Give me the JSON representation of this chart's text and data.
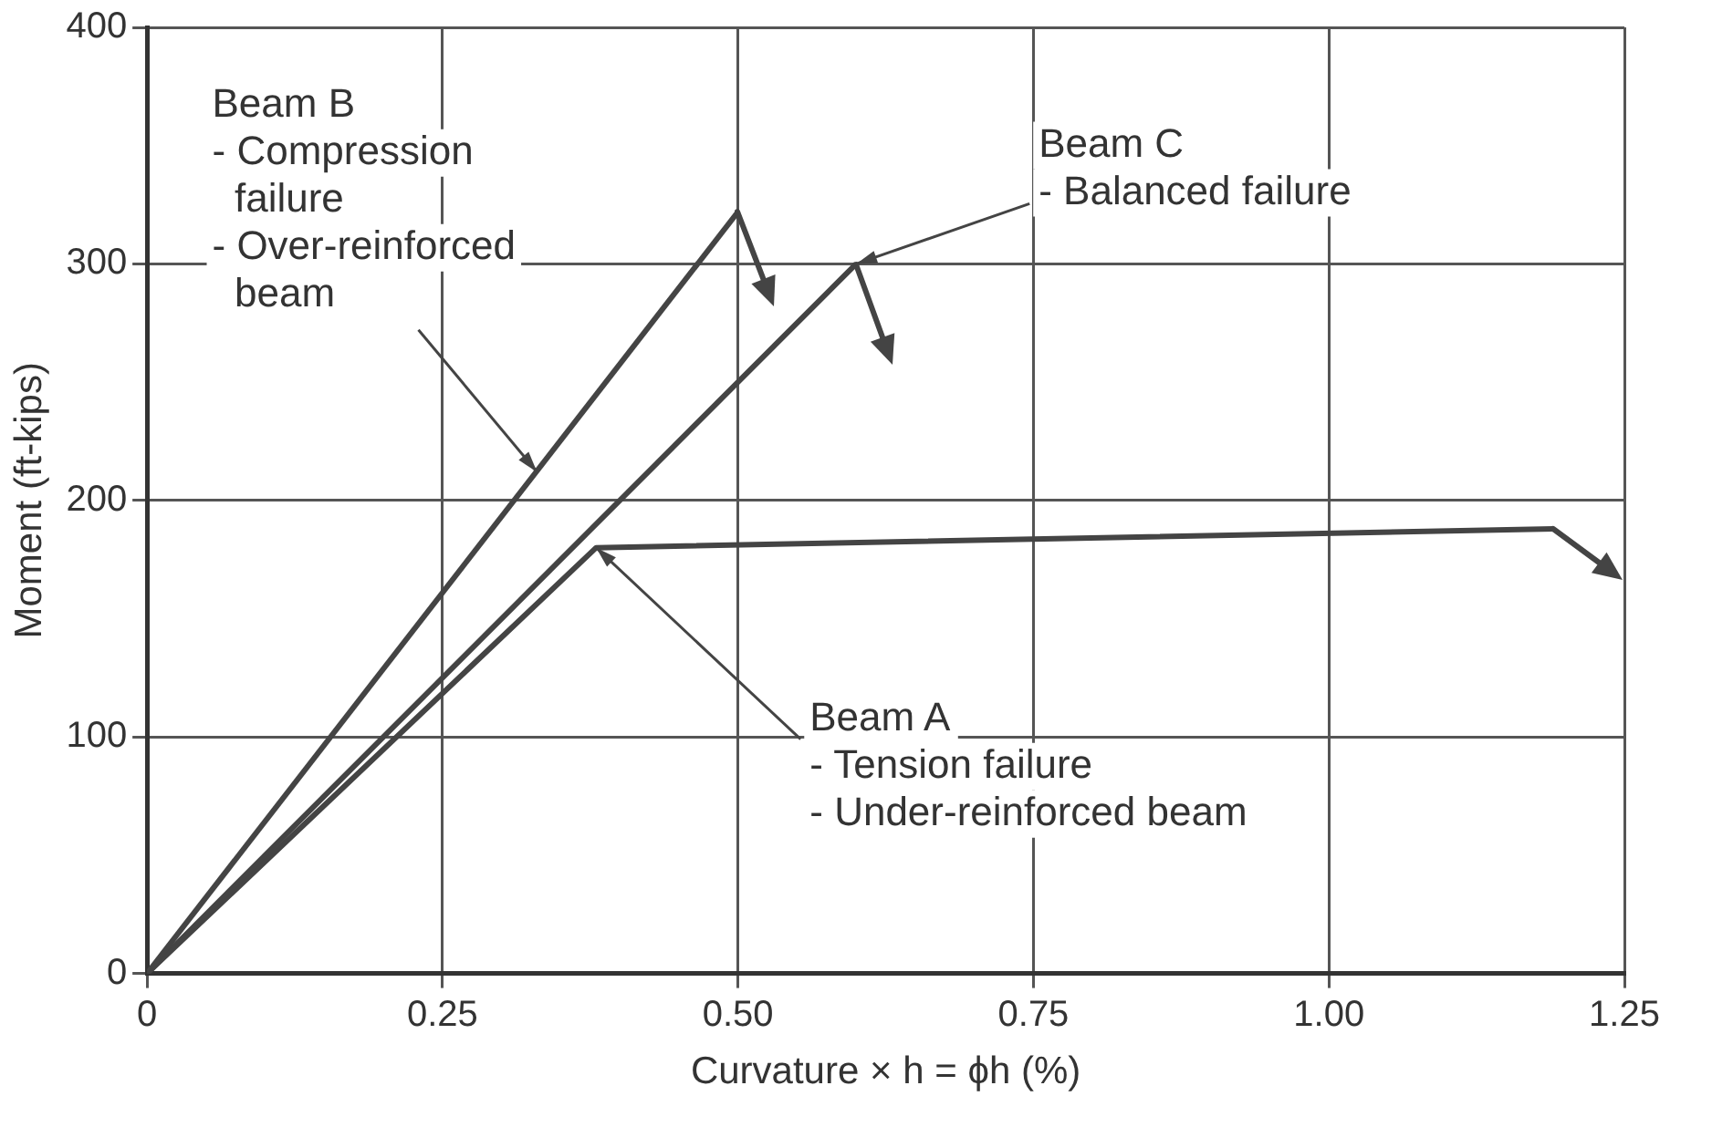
{
  "chart_data": {
    "type": "line",
    "xlabel": "Curvature × h = ϕh (%)",
    "ylabel": "Moment (ft-kips)",
    "xlim": [
      0,
      1.25
    ],
    "xticks": [
      0,
      0.25,
      {
        "value": 0.5,
        "label": "0.50"
      },
      0.75,
      {
        "value": 1,
        "label": "1.00"
      },
      1.25
    ],
    "ylim": [
      0,
      400
    ],
    "yticks": [
      0,
      100,
      200,
      300,
      400
    ],
    "grid": true,
    "legend": false,
    "marker": "none",
    "line_style": "solid",
    "series": [
      {
        "color": "#444444",
        "x": [
          0,
          0.5
        ],
        "values": [
          0,
          322
        ]
      },
      {
        "color": "#444444",
        "x": [
          0,
          0.6
        ],
        "values": [
          0,
          300
        ]
      },
      {
        "color": "#444444",
        "x": [
          0,
          0.38,
          1.19
        ],
        "values": [
          0,
          180,
          188
        ]
      }
    ],
    "annotations": [
      {
        "text": "Beam B\n- Compression\n  failure\n- Over-reinforced\n  beam",
        "x": 0.33,
        "y": 212
      },
      {
        "text": "Beam C\n- Balanced failure",
        "x": 0.6,
        "y": 300
      },
      {
        "text": "Beam A\n- Tension failure\n- Under-reinforced beam",
        "x": 0.38,
        "y": 180
      }
    ]
  }
}
